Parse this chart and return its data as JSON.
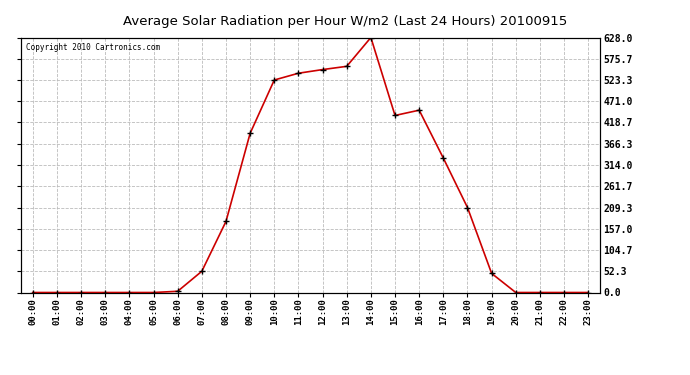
{
  "title": "Average Solar Radiation per Hour W/m2 (Last 24 Hours) 20100915",
  "copyright": "Copyright 2010 Cartronics.com",
  "hours": [
    "00:00",
    "01:00",
    "02:00",
    "03:00",
    "04:00",
    "05:00",
    "06:00",
    "07:00",
    "08:00",
    "09:00",
    "10:00",
    "11:00",
    "12:00",
    "13:00",
    "14:00",
    "15:00",
    "16:00",
    "17:00",
    "18:00",
    "19:00",
    "20:00",
    "21:00",
    "22:00",
    "23:00"
  ],
  "values": [
    0.0,
    0.0,
    0.0,
    0.0,
    0.0,
    0.0,
    3.0,
    52.3,
    175.0,
    392.0,
    523.3,
    540.0,
    549.0,
    557.0,
    628.0,
    436.0,
    449.0,
    331.0,
    209.3,
    47.0,
    0.0,
    0.0,
    0.0,
    0.0
  ],
  "line_color": "#cc0000",
  "marker_color": "#000000",
  "bg_color": "#ffffff",
  "plot_bg_color": "#ffffff",
  "grid_color": "#bbbbbb",
  "ytick_labels": [
    "0.0",
    "52.3",
    "104.7",
    "157.0",
    "209.3",
    "261.7",
    "314.0",
    "366.3",
    "418.7",
    "471.0",
    "523.3",
    "575.7",
    "628.0"
  ],
  "ytick_values": [
    0.0,
    52.3,
    104.7,
    157.0,
    209.3,
    261.7,
    314.0,
    366.3,
    418.7,
    471.0,
    523.3,
    575.7,
    628.0
  ],
  "ymax": 628.0,
  "ymin": 0.0
}
